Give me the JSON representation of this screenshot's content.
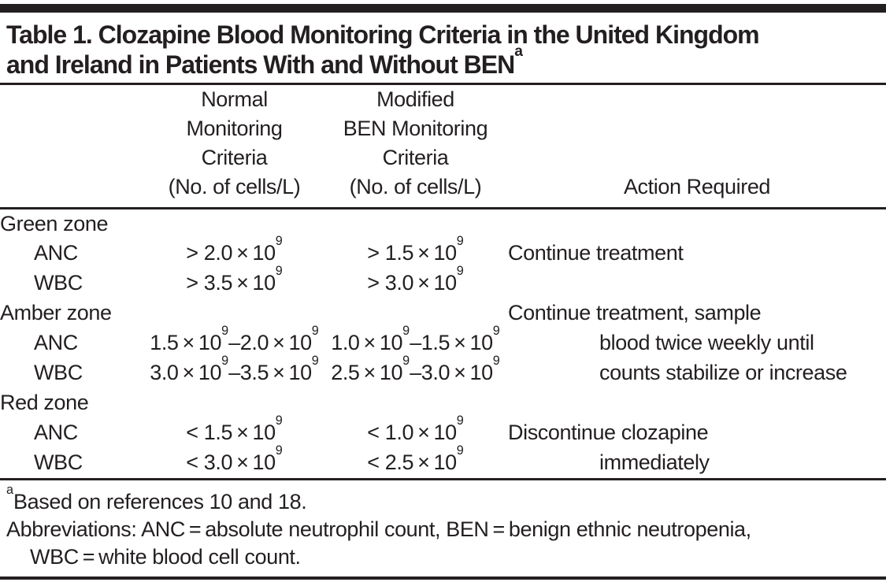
{
  "colors": {
    "ink": "#231f20",
    "background": "#ffffff"
  },
  "title": {
    "line1": "Table 1. Clozapine Blood Monitoring Criteria in the United Kingdom",
    "line2": "and Ireland in Patients With and Without BEN^a"
  },
  "table": {
    "headers": {
      "normal_lines": [
        "Normal",
        "Monitoring",
        "Criteria",
        "(No. of cells/L)"
      ],
      "modified_lines": [
        "Modified",
        "BEN Monitoring",
        "Criteria",
        "(No. of cells/L)"
      ],
      "action": "Action Required"
    },
    "rows": [
      {
        "label": "Green zone",
        "normal": "",
        "modified": "",
        "action": ""
      },
      {
        "label": "ANC",
        "normal": "> 2.0 × 10^9",
        "modified": "> 1.5 × 10^9",
        "action": "Continue treatment"
      },
      {
        "label": "WBC",
        "normal": "> 3.5 × 10^9",
        "modified": "> 3.0 × 10^9",
        "action": ""
      },
      {
        "label": "Amber zone",
        "normal": "",
        "modified": "",
        "action": "Continue treatment, sample"
      },
      {
        "label": "ANC",
        "normal": "1.5 × 10^9–2.0 × 10^9",
        "modified": "1.0 × 10^9–1.5 × 10^9",
        "action": "blood twice weekly until"
      },
      {
        "label": "WBC",
        "normal": "3.0 × 10^9–3.5 × 10^9",
        "modified": "2.5 × 10^9–3.0 × 10^9",
        "action": "counts stabilize or increase"
      },
      {
        "label": "Red zone",
        "normal": "",
        "modified": "",
        "action": ""
      },
      {
        "label": "ANC",
        "normal": "< 1.5 × 10^9",
        "modified": "< 1.0 × 10^9",
        "action": "Discontinue clozapine"
      },
      {
        "label": "WBC",
        "normal": "< 3.0 × 10^9",
        "modified": "< 2.5 × 10^9",
        "action": "immediately"
      }
    ]
  },
  "footnotes": {
    "reference_note": "^aBased on references 10 and 18.",
    "abbreviations_line1": "Abbreviations: ANC = absolute neutrophil count, BEN = benign ethnic neutropenia,",
    "abbreviations_line2": "WBC = white blood cell count."
  }
}
